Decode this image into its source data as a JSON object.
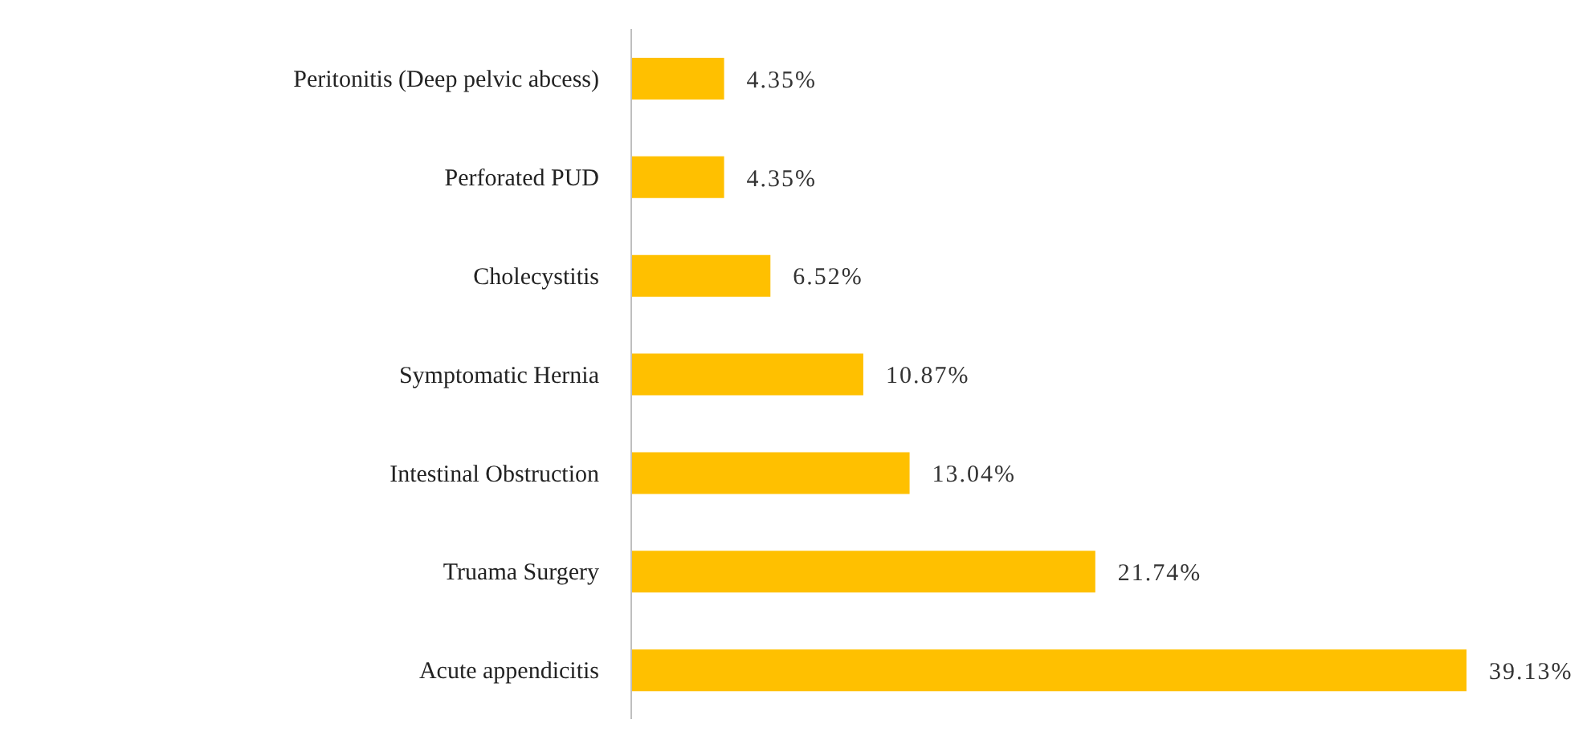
{
  "chart_data": {
    "type": "bar",
    "orientation": "horizontal",
    "categories": [
      "Peritonitis (Deep pelvic abcess)",
      "Perforated PUD",
      "Cholecystitis",
      "Symptomatic Hernia",
      "Intestinal Obstruction",
      "Truama Surgery",
      "Acute appendicitis"
    ],
    "values": [
      4.35,
      4.35,
      6.52,
      10.87,
      13.04,
      21.74,
      39.13
    ],
    "value_labels": [
      "4.35%",
      "4.35%",
      "6.52%",
      "10.87%",
      "13.04%",
      "21.74%",
      "39.13%"
    ],
    "color": "#ffc000",
    "tick_labels": "y"
  }
}
